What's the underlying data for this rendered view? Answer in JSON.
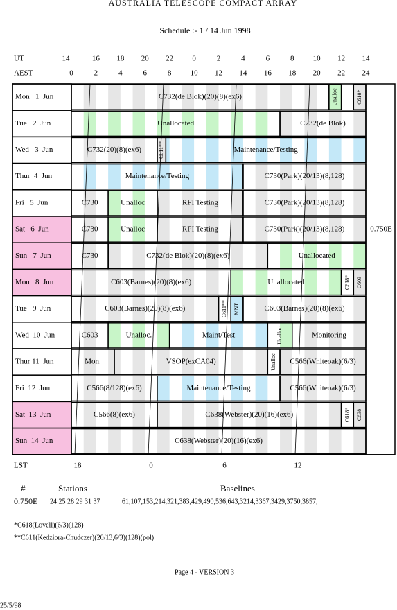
{
  "header": {
    "title": "AUSTRALIA TELESCOPE COMPACT ARRAY",
    "subtitle": "Schedule :- 1 / 14 Jun 1998"
  },
  "axes": {
    "ut_label": "UT",
    "ut_ticks": [
      14,
      16,
      18,
      20,
      22,
      0,
      2,
      4,
      6,
      8,
      10,
      12,
      14
    ],
    "aest_label": "AEST",
    "aest_ticks": [
      0,
      2,
      4,
      6,
      8,
      10,
      12,
      14,
      16,
      18,
      20,
      22,
      24
    ],
    "lst_label": "LST",
    "lst_ticks": [
      18,
      0,
      6,
      12
    ]
  },
  "array_config": "0.750E",
  "rows": [
    {
      "label": "Mon   1  Jun",
      "highlight": false,
      "blocks": [
        {
          "label": "C732(de Blok)(20)(8)(ex6)",
          "start": 0,
          "end": 21,
          "shade": "gray",
          "vertical": false
        },
        {
          "label": "Unalloc",
          "start": 21,
          "end": 22,
          "shade": "green",
          "vertical": true
        },
        {
          "label": "C618*",
          "start": 23,
          "end": 24,
          "shade": "gray",
          "vertical": true
        }
      ]
    },
    {
      "label": "Tue   2  Jun",
      "highlight": false,
      "blocks": [
        {
          "label": "Unallocated",
          "start": 0,
          "end": 17,
          "shade": "green",
          "vertical": false
        },
        {
          "label": "C732(de Blok)",
          "start": 17,
          "end": 24,
          "shade": "gray",
          "vertical": false
        }
      ]
    },
    {
      "label": "Wed   3  Jun",
      "highlight": false,
      "blocks": [
        {
          "label": "C732(20)(8)(ex6)",
          "start": 0,
          "end": 7,
          "shade": "gray",
          "vertical": false
        },
        {
          "label": "C611**",
          "start": 7,
          "end": 7.7,
          "shade": "gray",
          "vertical": true
        },
        {
          "label": "Maintenance/Testing",
          "start": 7.7,
          "end": 24,
          "shade": "blue",
          "vertical": false
        }
      ]
    },
    {
      "label": "Thur  4  Jun",
      "highlight": false,
      "blocks": [
        {
          "label": "Maintenance/Testing",
          "start": 0,
          "end": 14,
          "shade": "blue",
          "vertical": false
        },
        {
          "label": "C730(Park)(20/13)(8,128)",
          "start": 14,
          "end": 24,
          "shade": "gray",
          "vertical": false
        }
      ]
    },
    {
      "label": "Fri   5  Jun",
      "highlight": false,
      "blocks": [
        {
          "label": "C730",
          "start": 0,
          "end": 3,
          "shade": "gray",
          "vertical": false
        },
        {
          "label": "Unalloc",
          "start": 3,
          "end": 7,
          "shade": "green",
          "vertical": false
        },
        {
          "label": "RFI Testing",
          "start": 7,
          "end": 14,
          "shade": "gray",
          "vertical": false
        },
        {
          "label": "C730(Park)(20/13)(8,128)",
          "start": 14,
          "end": 24,
          "shade": "gray",
          "vertical": false
        }
      ]
    },
    {
      "label": "Sat   6  Jun",
      "highlight": true,
      "blocks": [
        {
          "label": "C730",
          "start": 0,
          "end": 3,
          "shade": "gray",
          "vertical": false
        },
        {
          "label": "Unalloc",
          "start": 3,
          "end": 7,
          "shade": "green",
          "vertical": false
        },
        {
          "label": "RFI Testing",
          "start": 7,
          "end": 14,
          "shade": "gray",
          "vertical": false
        },
        {
          "label": "C730(Park)(20/13)(8,128)",
          "start": 14,
          "end": 24,
          "shade": "gray",
          "vertical": false
        }
      ]
    },
    {
      "label": "Sun   7  Jun",
      "highlight": true,
      "blocks": [
        {
          "label": "C730",
          "start": 0,
          "end": 3,
          "shade": "gray",
          "vertical": false
        },
        {
          "label": "C732(de Blok)(20)(8)(ex6)",
          "start": 3,
          "end": 16,
          "shade": "gray",
          "vertical": false
        },
        {
          "label": "Unallocated",
          "start": 16,
          "end": 24,
          "shade": "green",
          "vertical": false
        }
      ]
    },
    {
      "label": "Mon   8  Jun",
      "highlight": true,
      "blocks": [
        {
          "label": "C603(Barnes)(20)(8)(ex6)",
          "start": 0,
          "end": 13,
          "shade": "gray",
          "vertical": false
        },
        {
          "label": "Unallocated",
          "start": 13,
          "end": 22,
          "shade": "green",
          "vertical": false
        },
        {
          "label": "C618*",
          "start": 22,
          "end": 23,
          "shade": "gray",
          "vertical": true
        },
        {
          "label": "C603",
          "start": 23,
          "end": 24,
          "shade": "gray",
          "vertical": true
        }
      ]
    },
    {
      "label": "Tue   9  Jun",
      "highlight": false,
      "blocks": [
        {
          "label": "C603(Barnes)(20)(8)(ex6)",
          "start": 0,
          "end": 12,
          "shade": "gray",
          "vertical": false
        },
        {
          "label": "C611**",
          "start": 12,
          "end": 13,
          "shade": "gray",
          "vertical": true
        },
        {
          "label": "MNT",
          "start": 13,
          "end": 14,
          "shade": "blue",
          "vertical": true
        },
        {
          "label": "C603(Barnes)(20)(8)(ex6)",
          "start": 14,
          "end": 24,
          "shade": "gray",
          "vertical": false
        }
      ]
    },
    {
      "label": "Wed  10  Jun",
      "highlight": false,
      "blocks": [
        {
          "label": "C603",
          "start": 0,
          "end": 3,
          "shade": "gray",
          "vertical": false
        },
        {
          "label": "Unalloc.",
          "start": 3,
          "end": 8,
          "shade": "green",
          "vertical": false
        },
        {
          "label": "Maint/Test",
          "start": 8,
          "end": 16,
          "shade": "blue",
          "vertical": false
        },
        {
          "label": "Unalloc",
          "start": 16,
          "end": 18,
          "shade": "green",
          "vertical": true
        },
        {
          "label": "Monitoring",
          "start": 18,
          "end": 24,
          "shade": "gray",
          "vertical": false
        }
      ]
    },
    {
      "label": "Thur 11  Jun",
      "highlight": false,
      "blocks": [
        {
          "label": "Mon.",
          "start": 0,
          "end": 3.5,
          "shade": "gray",
          "vertical": false
        },
        {
          "label": "VSOP(exCA04)",
          "start": 3.5,
          "end": 16,
          "shade": "gray",
          "vertical": false
        },
        {
          "label": "Unalloc",
          "start": 16,
          "end": 17,
          "shade": "green",
          "vertical": true
        },
        {
          "label": "C566(Whiteoak)(6/3)",
          "start": 17,
          "end": 24,
          "shade": "gray",
          "vertical": false
        }
      ]
    },
    {
      "label": "Fri  12  Jun",
      "highlight": false,
      "blocks": [
        {
          "label": "C566(8/128)(ex6)",
          "start": 0,
          "end": 7,
          "shade": "gray",
          "vertical": false
        },
        {
          "label": "Maintenance/Testing",
          "start": 7,
          "end": 17,
          "shade": "blue",
          "vertical": false
        },
        {
          "label": "C566(Whiteoak)(6/3)",
          "start": 17,
          "end": 24,
          "shade": "gray",
          "vertical": false
        }
      ]
    },
    {
      "label": "Sat  13  Jun",
      "highlight": true,
      "blocks": [
        {
          "label": "C566(8)(ex6)",
          "start": 0,
          "end": 7,
          "shade": "gray",
          "vertical": false
        },
        {
          "label": "C638(Webster)(20)(16)(ex6)",
          "start": 7,
          "end": 22,
          "shade": "gray",
          "vertical": false
        },
        {
          "label": "C618*",
          "start": 22,
          "end": 23,
          "shade": "gray",
          "vertical": true
        },
        {
          "label": "C638",
          "start": 23,
          "end": 24,
          "shade": "gray",
          "vertical": true
        }
      ]
    },
    {
      "label": "Sun  14  Jun",
      "highlight": true,
      "blocks": [
        {
          "label": "C638(Webster)(20)(16)(ex6)",
          "start": 0,
          "end": 24,
          "shade": "gray",
          "vertical": false
        }
      ]
    }
  ],
  "stations_table": {
    "headers": [
      "#",
      "Stations",
      "Baselines"
    ],
    "row": [
      "0.750E",
      "24 25 28 29 31 37",
      "61,107,153,214,321,383,429,490,536,643,3214,3367,3429,3750,3857,"
    ]
  },
  "footnotes": [
    "*C618(Lovell)(6/3)(128)",
    "**C611(Kedziora-Chudczer)(20/13,6/3)(128)(pol)"
  ],
  "footer": {
    "page": "Page 4 - VERSION 3",
    "date": "25/5/98"
  }
}
